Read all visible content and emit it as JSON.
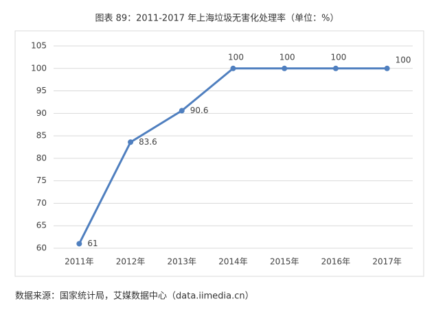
{
  "chart_data": {
    "type": "line",
    "title": "图表 89：2011-2017 年上海垃圾无害化处理率（单位：%）",
    "categories": [
      "2011年",
      "2012年",
      "2013年",
      "2014年",
      "2015年",
      "2016年",
      "2017年"
    ],
    "series": [
      {
        "color": "#4f7fbf",
        "values": [
          61,
          83.6,
          90.6,
          100,
          100,
          100,
          100
        ]
      }
    ],
    "ylim": [
      60,
      105
    ],
    "yticks": [
      60,
      65,
      70,
      75,
      80,
      85,
      90,
      95,
      100,
      105
    ],
    "grid": true,
    "source": "数据来源：国家统计局，艾媒数据中心（data.iimedia.cn）"
  }
}
